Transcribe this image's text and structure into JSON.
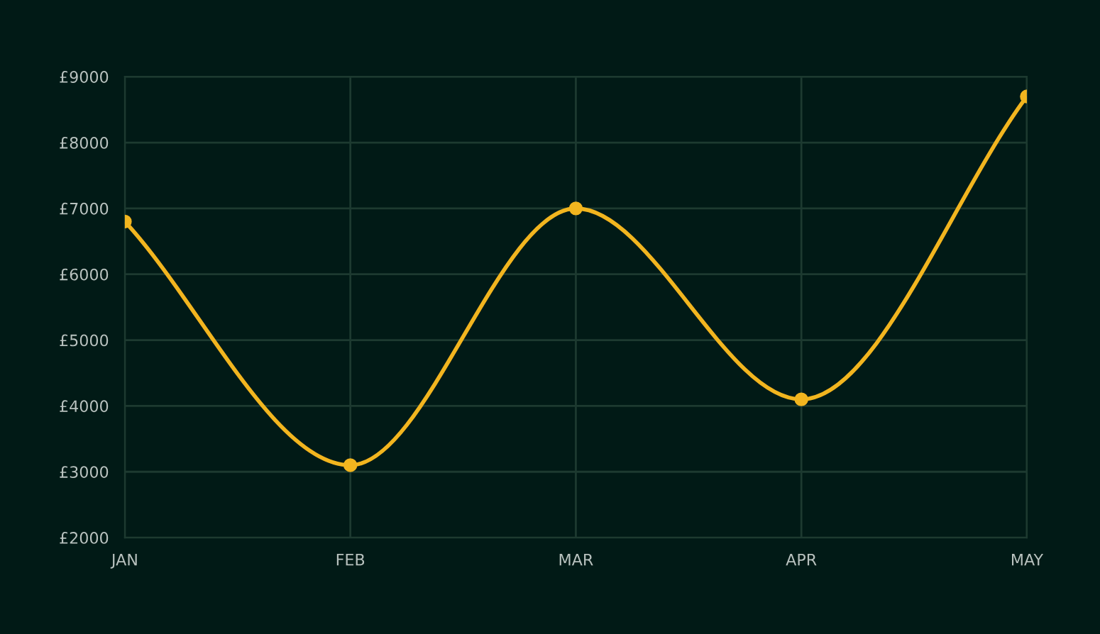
{
  "chart_data": {
    "type": "line",
    "categories": [
      "JAN",
      "FEB",
      "MAR",
      "APR",
      "MAY"
    ],
    "series": [
      {
        "color": "#f2b51f",
        "values": [
          6800,
          3100,
          7000,
          4100,
          8700
        ]
      }
    ],
    "ylim": [
      2000,
      9000
    ],
    "yticks": [
      {
        "value": 2000,
        "label": "£2000"
      },
      {
        "value": 3000,
        "label": "£3000"
      },
      {
        "value": 4000,
        "label": "£4000"
      },
      {
        "value": 5000,
        "label": "£5000"
      },
      {
        "value": 6000,
        "label": "£6000"
      },
      {
        "value": 7000,
        "label": "£7000"
      },
      {
        "value": 8000,
        "label": "£8000"
      },
      {
        "value": 9000,
        "label": "£9000"
      }
    ],
    "grid": true,
    "marker": "circle",
    "line_style": "solid"
  }
}
